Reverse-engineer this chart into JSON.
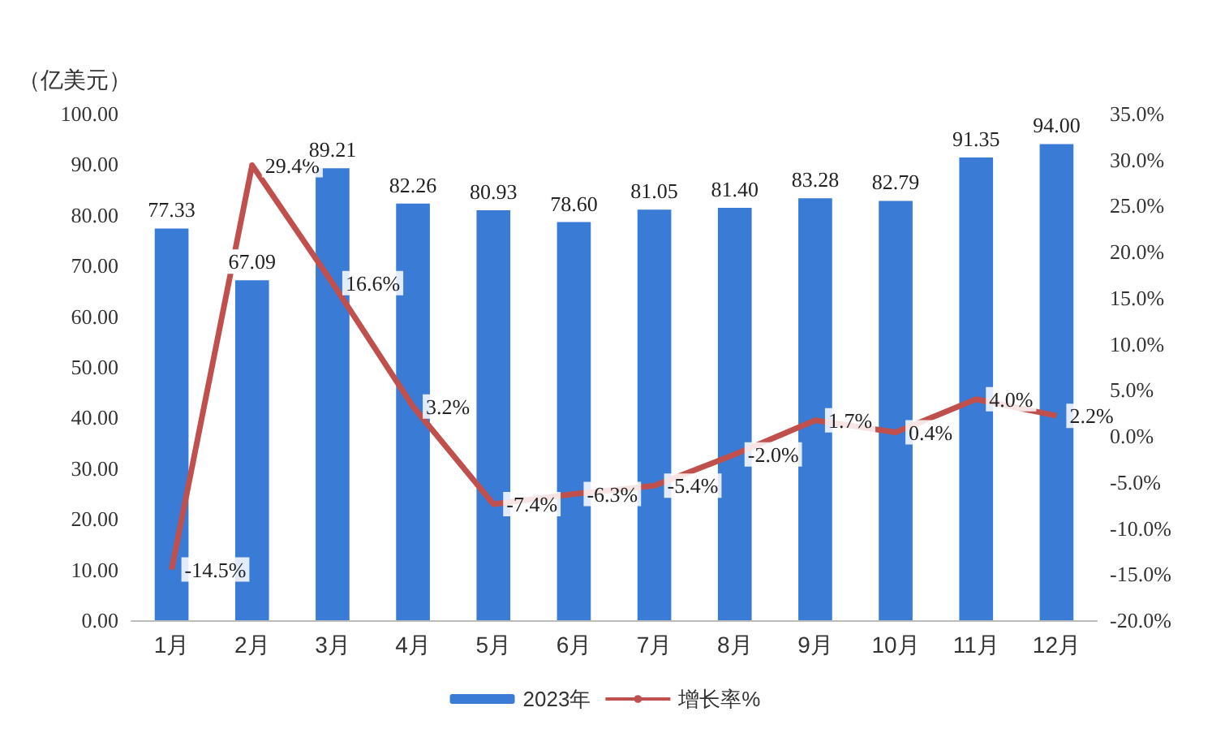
{
  "chart_data": {
    "type": "bar",
    "ylabel": "（亿美元）",
    "categories": [
      "1月",
      "2月",
      "3月",
      "4月",
      "5月",
      "6月",
      "7月",
      "8月",
      "9月",
      "10月",
      "11月",
      "12月"
    ],
    "series": [
      {
        "name": "2023年",
        "color": "#3a7bd5",
        "values": [
          77.33,
          67.09,
          89.21,
          82.26,
          80.93,
          78.6,
          81.05,
          81.4,
          83.28,
          82.79,
          91.35,
          94.0
        ],
        "value_labels": [
          "77.33",
          "67.09",
          "89.21",
          "82.26",
          "80.93",
          "78.60",
          "81.05",
          "81.40",
          "83.28",
          "82.79",
          "91.35",
          "94.00"
        ]
      },
      {
        "name": "增长率%",
        "type": "line",
        "axis": "y2",
        "color": "#c0504d",
        "values": [
          -14.5,
          29.4,
          16.6,
          3.2,
          -7.4,
          -6.3,
          -5.4,
          -2.0,
          1.7,
          0.4,
          4.0,
          2.2
        ],
        "value_labels": [
          "-14.5%",
          "29.4%",
          "16.6%",
          "3.2%",
          "-7.4%",
          "-6.3%",
          "-5.4%",
          "-2.0%",
          "1.7%",
          "0.4%",
          "4.0%",
          "2.2%"
        ]
      }
    ],
    "ylim": [
      0,
      100
    ],
    "yticks": [
      {
        "value": 0,
        "label": "0.00"
      },
      {
        "value": 10,
        "label": "10.00"
      },
      {
        "value": 20,
        "label": "20.00"
      },
      {
        "value": 30,
        "label": "30.00"
      },
      {
        "value": 40,
        "label": "40.00"
      },
      {
        "value": 50,
        "label": "50.00"
      },
      {
        "value": 60,
        "label": "60.00"
      },
      {
        "value": 70,
        "label": "70.00"
      },
      {
        "value": 80,
        "label": "80.00"
      },
      {
        "value": 90,
        "label": "90.00"
      },
      {
        "value": 100,
        "label": "100.00"
      }
    ],
    "y2lim": [
      -20,
      35
    ],
    "y2ticks": [
      {
        "value": -20,
        "label": "-20.0%"
      },
      {
        "value": -15,
        "label": "-15.0%"
      },
      {
        "value": -10,
        "label": "-10.0%"
      },
      {
        "value": -5,
        "label": "-5.0%"
      },
      {
        "value": 0,
        "label": "0.0%"
      },
      {
        "value": 5,
        "label": "5.0%"
      },
      {
        "value": 10,
        "label": "10.0%"
      },
      {
        "value": 15,
        "label": "15.0%"
      },
      {
        "value": 20,
        "label": "20.0%"
      },
      {
        "value": 25,
        "label": "25.0%"
      },
      {
        "value": 30,
        "label": "30.0%"
      },
      {
        "value": 35,
        "label": "35.0%"
      }
    ],
    "legend": "bottom",
    "grid": false,
    "marker": "none"
  }
}
